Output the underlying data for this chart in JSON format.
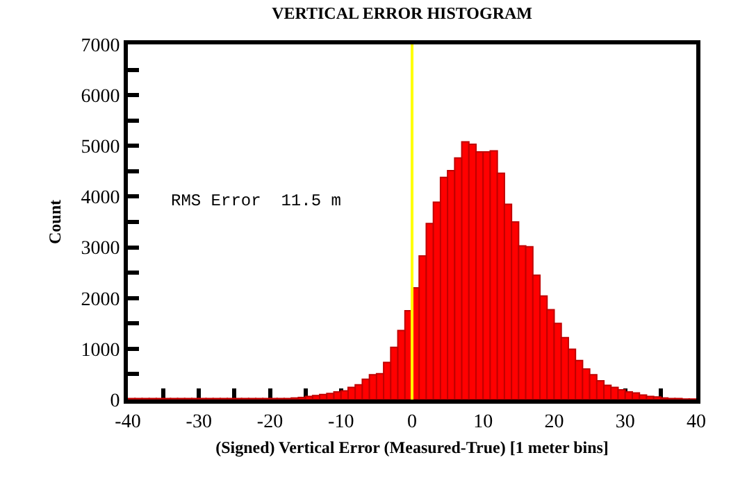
{
  "chart_data": {
    "type": "histogram",
    "title": "VERTICAL ERROR HISTOGRAM",
    "xlabel": "(Signed) Vertical Error (Measured-True) [1 meter bins]",
    "ylabel": "Count",
    "bins": [
      -40,
      -39,
      -38,
      -37,
      -36,
      -35,
      -34,
      -33,
      -32,
      -31,
      -30,
      -29,
      -28,
      -27,
      -26,
      -25,
      -24,
      -23,
      -22,
      -21,
      -20,
      -19,
      -18,
      -17,
      -16,
      -15,
      -14,
      -13,
      -12,
      -11,
      -10,
      -9,
      -8,
      -7,
      -6,
      -5,
      -4,
      -3,
      -2,
      -1,
      0,
      1,
      2,
      3,
      4,
      5,
      6,
      7,
      8,
      9,
      10,
      11,
      12,
      13,
      14,
      15,
      16,
      17,
      18,
      19,
      20,
      21,
      22,
      23,
      24,
      25,
      26,
      27,
      28,
      29,
      30,
      31,
      32,
      33,
      34,
      35,
      36,
      37,
      38,
      39,
      40
    ],
    "values": [
      20,
      20,
      20,
      20,
      20,
      20,
      20,
      20,
      20,
      20,
      20,
      20,
      20,
      20,
      20,
      20,
      20,
      20,
      20,
      20,
      20,
      20,
      20,
      30,
      40,
      60,
      80,
      100,
      120,
      150,
      170,
      240,
      290,
      400,
      490,
      510,
      730,
      1030,
      1360,
      1750,
      2200,
      2830,
      3470,
      3890,
      4380,
      4510,
      4760,
      5080,
      5030,
      4880,
      4880,
      4900,
      4460,
      3850,
      3500,
      3030,
      3010,
      2450,
      2040,
      1770,
      1500,
      1220,
      990,
      770,
      600,
      490,
      370,
      280,
      240,
      190,
      150,
      130,
      90,
      60,
      50,
      30,
      20,
      20,
      10,
      10
    ],
    "color": "#ff0000",
    "xlim": [
      -40,
      40
    ],
    "ylim": [
      0,
      7000
    ],
    "xticks": [
      -40,
      {
        "value": -35,
        "label": null
      },
      -30,
      {
        "value": -25,
        "label": null
      },
      -20,
      {
        "value": -15,
        "label": null
      },
      -10,
      {
        "value": -5,
        "label": null
      },
      0,
      {
        "value": 5,
        "label": null
      },
      10,
      {
        "value": 15,
        "label": null
      },
      20,
      {
        "value": 25,
        "label": null
      },
      30,
      {
        "value": 35,
        "label": null
      },
      40
    ],
    "yticks": [
      0,
      {
        "value": 500,
        "label": null
      },
      1000,
      {
        "value": 1500,
        "label": null
      },
      2000,
      {
        "value": 2500,
        "label": null
      },
      3000,
      {
        "value": 3500,
        "label": null
      },
      4000,
      {
        "value": 4500,
        "label": null
      },
      5000,
      {
        "value": 5500,
        "label": null
      },
      6000,
      {
        "value": 6500,
        "label": null
      },
      7000
    ],
    "ref_lines": [
      {
        "axis": "x",
        "value": 0,
        "color": "#ffff00"
      }
    ],
    "annotations": [
      "RMS Error  11.5 m"
    ],
    "grid": false,
    "legend": false
  }
}
